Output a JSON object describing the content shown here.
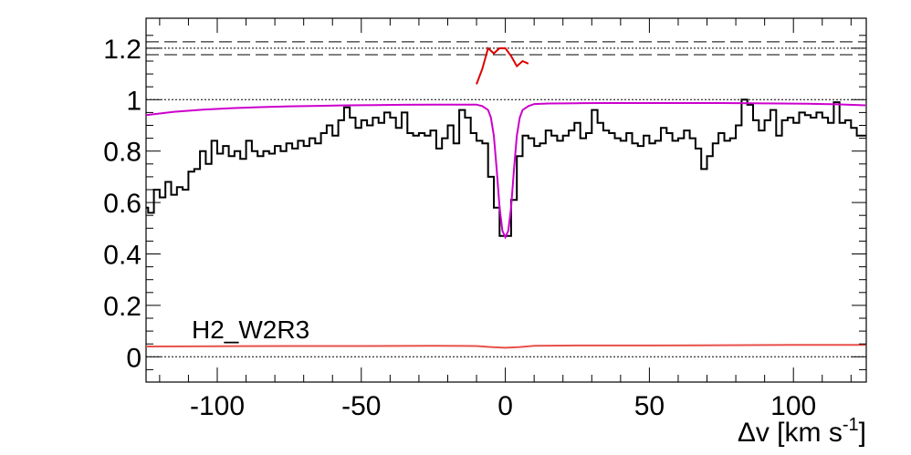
{
  "chart_data": {
    "type": "line",
    "label": "H2_W2R3",
    "xlabel": "Δv [km s",
    "xlabel_sup": "-1",
    "xlabel_close": "]",
    "xlim": [
      -125,
      125
    ],
    "ylim": [
      -0.1,
      1.3
    ],
    "x_ticks": [
      -100,
      -50,
      0,
      50,
      100
    ],
    "y_ticks": [
      0,
      0.2,
      0.4,
      0.6,
      0.8,
      1,
      1.2
    ],
    "x_tick_labels": [
      "-100",
      "-50",
      "0",
      "50",
      "100"
    ],
    "y_tick_labels": [
      "0",
      "0.2",
      "0.4",
      "0.6",
      "0.8",
      "1",
      "1.2"
    ],
    "reference_lines": [
      {
        "name": "zero",
        "y": 0,
        "style": "dotted"
      },
      {
        "name": "continuum",
        "y": 1,
        "style": "dotted"
      },
      {
        "name": "upper-dash",
        "y": 1.225,
        "style": "dashed"
      },
      {
        "name": "upper-dot",
        "y": 1.2,
        "style": "dotted"
      },
      {
        "name": "lower-dash",
        "y": 1.175,
        "style": "dashed"
      }
    ],
    "colors": {
      "data": "#000000",
      "model": "#cc00cc",
      "error": "#e8504a",
      "residual": "#dd0000"
    },
    "series": [
      {
        "key": "flux",
        "style": "step",
        "x": [
          -125,
          -123,
          -121,
          -119,
          -117,
          -115,
          -113,
          -111,
          -109,
          -107,
          -105,
          -103,
          -101,
          -99,
          -97,
          -95,
          -93,
          -91,
          -89,
          -87,
          -85,
          -83,
          -81,
          -79,
          -77,
          -75,
          -73,
          -71,
          -69,
          -67,
          -65,
          -63,
          -61,
          -59,
          -57,
          -55,
          -53,
          -51,
          -49,
          -47,
          -45,
          -43,
          -41,
          -39,
          -37,
          -35,
          -33,
          -31,
          -29,
          -27,
          -25,
          -23,
          -21,
          -19,
          -17,
          -15,
          -13,
          -11,
          -9,
          -7,
          -5,
          -3,
          -1,
          1,
          3,
          5,
          7,
          9,
          11,
          13,
          15,
          17,
          19,
          21,
          23,
          25,
          27,
          29,
          31,
          33,
          35,
          37,
          39,
          41,
          43,
          45,
          47,
          49,
          51,
          53,
          55,
          57,
          59,
          61,
          63,
          65,
          67,
          69,
          71,
          73,
          75,
          77,
          79,
          81,
          83,
          85,
          87,
          89,
          91,
          93,
          95,
          97,
          99,
          101,
          103,
          105,
          107,
          109,
          111,
          113,
          115,
          117,
          119,
          121,
          123,
          125
        ],
        "y": [
          0.58,
          0.56,
          0.65,
          0.62,
          0.68,
          0.63,
          0.66,
          0.65,
          0.72,
          0.73,
          0.8,
          0.75,
          0.84,
          0.79,
          0.82,
          0.78,
          0.8,
          0.77,
          0.84,
          0.8,
          0.78,
          0.8,
          0.79,
          0.82,
          0.8,
          0.83,
          0.81,
          0.84,
          0.82,
          0.85,
          0.83,
          0.87,
          0.9,
          0.86,
          0.92,
          0.97,
          0.93,
          0.89,
          0.92,
          0.9,
          0.93,
          0.91,
          0.95,
          0.93,
          0.89,
          0.95,
          0.87,
          0.86,
          0.87,
          0.86,
          0.88,
          0.81,
          0.85,
          0.9,
          0.83,
          0.96,
          0.93,
          0.87,
          0.84,
          0.83,
          0.7,
          0.58,
          0.47,
          0.47,
          0.61,
          0.78,
          0.86,
          0.85,
          0.82,
          0.83,
          0.88,
          0.86,
          0.84,
          0.86,
          0.88,
          0.91,
          0.85,
          0.87,
          0.96,
          0.91,
          0.88,
          0.87,
          0.85,
          0.84,
          0.87,
          0.83,
          0.82,
          0.86,
          0.83,
          0.84,
          0.89,
          0.87,
          0.84,
          0.85,
          0.88,
          0.85,
          0.81,
          0.73,
          0.78,
          0.83,
          0.87,
          0.84,
          0.85,
          0.9,
          1.0,
          0.98,
          0.92,
          0.88,
          0.92,
          0.96,
          0.86,
          0.92,
          0.93,
          0.91,
          0.95,
          0.94,
          0.93,
          0.95,
          0.93,
          0.91,
          0.99,
          0.91,
          0.92,
          0.89,
          0.86,
          0.86
        ]
      },
      {
        "key": "model",
        "style": "line",
        "x": [
          -125,
          -115,
          -105,
          -95,
          -85,
          -75,
          -65,
          -55,
          -45,
          -35,
          -25,
          -15,
          -10,
          -8,
          -6,
          -5,
          -4,
          -3,
          -2,
          -1,
          0,
          1,
          2,
          3,
          4,
          5,
          6,
          8,
          10,
          15,
          25,
          35,
          45,
          55,
          65,
          75,
          85,
          95,
          105,
          115,
          125
        ],
        "y": [
          0.94,
          0.953,
          0.961,
          0.967,
          0.971,
          0.974,
          0.976,
          0.978,
          0.979,
          0.98,
          0.981,
          0.981,
          0.981,
          0.975,
          0.96,
          0.93,
          0.86,
          0.73,
          0.58,
          0.49,
          0.465,
          0.49,
          0.58,
          0.73,
          0.86,
          0.93,
          0.96,
          0.975,
          0.983,
          0.985,
          0.986,
          0.987,
          0.987,
          0.987,
          0.987,
          0.987,
          0.986,
          0.985,
          0.984,
          0.982,
          0.978
        ]
      },
      {
        "key": "error",
        "style": "line",
        "x": [
          -125,
          -100,
          -75,
          -50,
          -25,
          -10,
          -5,
          0,
          5,
          10,
          25,
          50,
          75,
          100,
          125
        ],
        "y": [
          0.04,
          0.041,
          0.042,
          0.042,
          0.043,
          0.042,
          0.038,
          0.035,
          0.038,
          0.043,
          0.044,
          0.044,
          0.045,
          0.046,
          0.046
        ]
      },
      {
        "key": "residual",
        "style": "line",
        "x": [
          -10,
          -8,
          -6,
          -4,
          -2,
          0,
          2,
          4,
          6,
          8
        ],
        "y": [
          1.06,
          1.12,
          1.2,
          1.18,
          1.2,
          1.2,
          1.17,
          1.13,
          1.15,
          1.14
        ]
      }
    ]
  }
}
